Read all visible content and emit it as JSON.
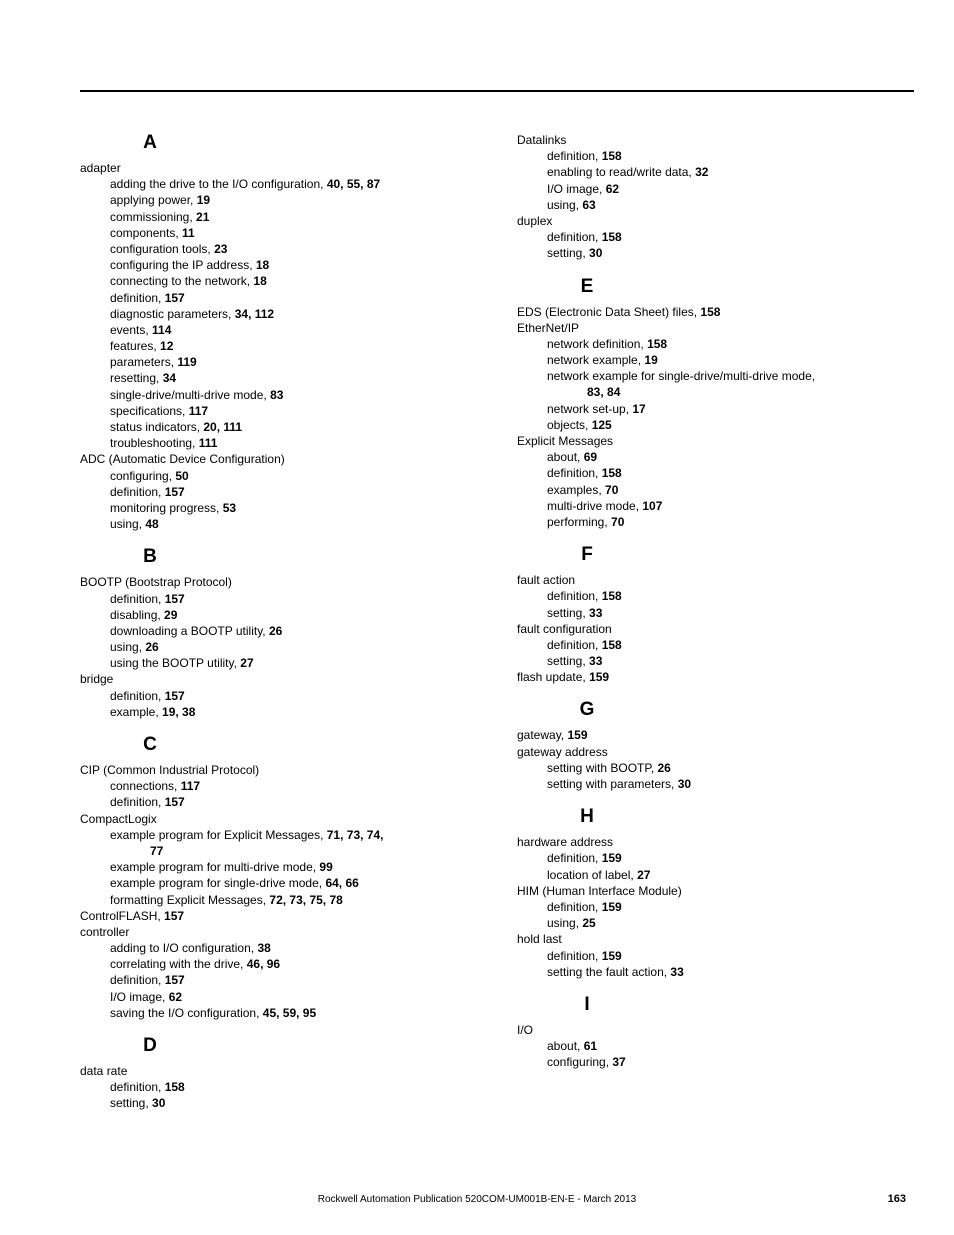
{
  "left": {
    "A": {
      "letter": "A",
      "entries": [
        {
          "term": "adapter",
          "subs": [
            {
              "t": "adding the drive to the I/O configuration, ",
              "p": "40, 55, 87"
            },
            {
              "t": "applying power, ",
              "p": "19"
            },
            {
              "t": "commissioning, ",
              "p": "21"
            },
            {
              "t": "components, ",
              "p": "11"
            },
            {
              "t": "configuration tools, ",
              "p": "23"
            },
            {
              "t": "configuring the IP address, ",
              "p": "18"
            },
            {
              "t": "connecting to the network, ",
              "p": "18"
            },
            {
              "t": "definition, ",
              "p": "157"
            },
            {
              "t": "diagnostic parameters, ",
              "p": "34, 112"
            },
            {
              "t": "events, ",
              "p": "114"
            },
            {
              "t": "features, ",
              "p": "12"
            },
            {
              "t": "parameters, ",
              "p": "119"
            },
            {
              "t": "resetting, ",
              "p": "34"
            },
            {
              "t": "single-drive/multi-drive mode, ",
              "p": "83"
            },
            {
              "t": "specifications, ",
              "p": "117"
            },
            {
              "t": "status indicators, ",
              "p": "20, 111"
            },
            {
              "t": "troubleshooting, ",
              "p": "111"
            }
          ]
        },
        {
          "term": "ADC (Automatic Device Configuration)",
          "subs": [
            {
              "t": "configuring, ",
              "p": "50"
            },
            {
              "t": "definition, ",
              "p": "157"
            },
            {
              "t": "monitoring progress, ",
              "p": "53"
            },
            {
              "t": "using, ",
              "p": "48"
            }
          ]
        }
      ]
    },
    "B": {
      "letter": "B",
      "entries": [
        {
          "term": "BOOTP (Bootstrap Protocol)",
          "subs": [
            {
              "t": "definition, ",
              "p": "157"
            },
            {
              "t": "disabling, ",
              "p": "29"
            },
            {
              "t": "downloading a BOOTP utility, ",
              "p": "26"
            },
            {
              "t": "using, ",
              "p": "26"
            },
            {
              "t": "using the BOOTP utility, ",
              "p": "27"
            }
          ]
        },
        {
          "term": "bridge",
          "subs": [
            {
              "t": "definition, ",
              "p": "157"
            },
            {
              "t": "example, ",
              "p": "19, 38"
            }
          ]
        }
      ]
    },
    "C": {
      "letter": "C",
      "entries": [
        {
          "term": "CIP (Common Industrial Protocol)",
          "subs": [
            {
              "t": "connections, ",
              "p": "117"
            },
            {
              "t": "definition, ",
              "p": "157"
            }
          ]
        },
        {
          "term": "CompactLogix",
          "subs": [
            {
              "t": "example program for Explicit Messages, ",
              "p": "71, 73, 74,",
              "cont": "77"
            },
            {
              "t": "example program for multi-drive mode, ",
              "p": "99"
            },
            {
              "t": "example program for single-drive mode, ",
              "p": "64, 66"
            },
            {
              "t": "formatting Explicit Messages, ",
              "p": "72, 73, 75, 78"
            }
          ]
        },
        {
          "term_with_page": "ControlFLASH, ",
          "term_page": "157"
        },
        {
          "term": "controller",
          "subs": [
            {
              "t": "adding to I/O configuration, ",
              "p": "38"
            },
            {
              "t": "correlating with the drive, ",
              "p": "46, 96"
            },
            {
              "t": "definition, ",
              "p": "157"
            },
            {
              "t": "I/O image, ",
              "p": "62"
            },
            {
              "t": "saving the I/O configuration, ",
              "p": "45, 59, 95"
            }
          ]
        }
      ]
    },
    "D": {
      "letter": "D",
      "entries": [
        {
          "term": "data rate",
          "subs": [
            {
              "t": "definition, ",
              "p": "158"
            },
            {
              "t": "setting, ",
              "p": "30"
            }
          ]
        }
      ]
    }
  },
  "right": {
    "Dcont": {
      "entries": [
        {
          "term": "Datalinks",
          "subs": [
            {
              "t": "definition, ",
              "p": "158"
            },
            {
              "t": "enabling to read/write data, ",
              "p": "32"
            },
            {
              "t": "I/O image, ",
              "p": "62"
            },
            {
              "t": "using, ",
              "p": "63"
            }
          ]
        },
        {
          "term": "duplex",
          "subs": [
            {
              "t": "definition, ",
              "p": "158"
            },
            {
              "t": "setting, ",
              "p": "30"
            }
          ]
        }
      ]
    },
    "E": {
      "letter": "E",
      "entries": [
        {
          "term_with_page": "EDS (Electronic Data Sheet) files, ",
          "term_page": "158"
        },
        {
          "term": "EtherNet/IP",
          "subs": [
            {
              "t": "network definition, ",
              "p": "158"
            },
            {
              "t": "network example, ",
              "p": "19"
            },
            {
              "t": "network example for single-drive/multi-drive mode,",
              "p": "",
              "cont": "83, 84"
            },
            {
              "t": "network set-up, ",
              "p": "17"
            },
            {
              "t": "objects, ",
              "p": "125"
            }
          ]
        },
        {
          "term": "Explicit Messages",
          "subs": [
            {
              "t": "about, ",
              "p": "69"
            },
            {
              "t": "definition, ",
              "p": "158"
            },
            {
              "t": "examples, ",
              "p": "70"
            },
            {
              "t": "multi-drive mode, ",
              "p": "107"
            },
            {
              "t": "performing, ",
              "p": "70"
            }
          ]
        }
      ]
    },
    "F": {
      "letter": "F",
      "entries": [
        {
          "term": "fault action",
          "subs": [
            {
              "t": "definition, ",
              "p": "158"
            },
            {
              "t": "setting, ",
              "p": "33"
            }
          ]
        },
        {
          "term": "fault configuration",
          "subs": [
            {
              "t": "definition, ",
              "p": "158"
            },
            {
              "t": "setting, ",
              "p": "33"
            }
          ]
        },
        {
          "term_with_page": "flash update, ",
          "term_page": "159"
        }
      ]
    },
    "G": {
      "letter": "G",
      "entries": [
        {
          "term_with_page": "gateway, ",
          "term_page": "159"
        },
        {
          "term": "gateway address",
          "subs": [
            {
              "t": "setting with BOOTP, ",
              "p": "26"
            },
            {
              "t": "setting with parameters, ",
              "p": "30"
            }
          ]
        }
      ]
    },
    "H": {
      "letter": "H",
      "entries": [
        {
          "term": "hardware address",
          "subs": [
            {
              "t": "definition, ",
              "p": "159"
            },
            {
              "t": "location of label, ",
              "p": "27"
            }
          ]
        },
        {
          "term": "HIM (Human Interface Module)",
          "subs": [
            {
              "t": "definition, ",
              "p": "159"
            },
            {
              "t": "using, ",
              "p": "25"
            }
          ]
        },
        {
          "term": "hold last",
          "subs": [
            {
              "t": "definition, ",
              "p": "159"
            },
            {
              "t": "setting the fault action, ",
              "p": "33"
            }
          ]
        }
      ]
    },
    "I": {
      "letter": "I",
      "entries": [
        {
          "term": "I/O",
          "subs": [
            {
              "t": "about, ",
              "p": "61"
            },
            {
              "t": "configuring, ",
              "p": "37"
            }
          ]
        }
      ]
    }
  },
  "footer": "Rockwell Automation Publication 520COM-UM001B-EN-E - March 2013",
  "pagenum": "163",
  "sep": ", "
}
